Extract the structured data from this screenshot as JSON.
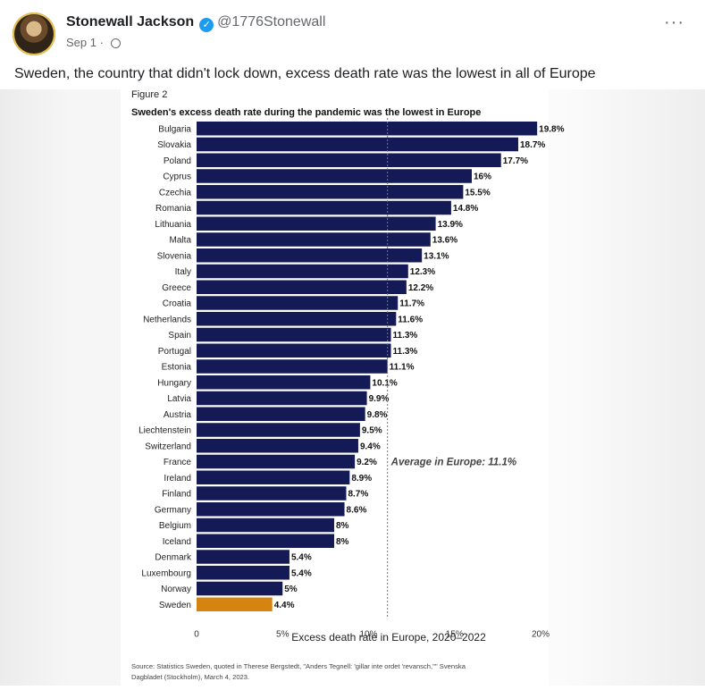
{
  "post": {
    "author": "Stonewall Jackson",
    "handle": "@1776Stonewall",
    "date": "Sep 1",
    "separator": "·",
    "more": "···",
    "verified_mark": "✓",
    "avatar_icon": "avatar-portrait",
    "text": "Sweden, the country that didn't lock down, excess death rate was the lowest in all of Europe"
  },
  "figure": {
    "label": "Figure 2",
    "source_line1": "Source: Statistics Sweden, quoted in Therese Bergstedt, \"Anders Tegnell: 'gillar inte ordet 'revansch,''\" Svenska",
    "source_line2": "Dagbladet (Stockholm), March 4, 2023."
  },
  "chart_data": {
    "type": "bar",
    "orientation": "horizontal",
    "title": "Sweden's excess death rate during the pandemic was the lowest in Europe",
    "xlabel": "Excess death rate in Europe, 2020–2022",
    "xlim": [
      0,
      20
    ],
    "xticks": [
      {
        "value": 0,
        "label": "0"
      },
      {
        "value": 5,
        "label": "5%"
      },
      {
        "value": 10,
        "label": "10%"
      },
      {
        "value": 15,
        "label": "15%"
      },
      {
        "value": 20,
        "label": "20%"
      }
    ],
    "categories": [
      "Bulgaria",
      "Slovakia",
      "Poland",
      "Cyprus",
      "Czechia",
      "Romania",
      "Lithuania",
      "Malta",
      "Slovenia",
      "Italy",
      "Greece",
      "Croatia",
      "Netherlands",
      "Spain",
      "Portugal",
      "Estonia",
      "Hungary",
      "Latvia",
      "Austria",
      "Liechtenstein",
      "Switzerland",
      "France",
      "Ireland",
      "Finland",
      "Germany",
      "Belgium",
      "Iceland",
      "Denmark",
      "Luxembourg",
      "Norway",
      "Sweden"
    ],
    "values": [
      19.8,
      18.7,
      17.7,
      16,
      15.5,
      14.8,
      13.9,
      13.6,
      13.1,
      12.3,
      12.2,
      11.7,
      11.6,
      11.3,
      11.3,
      11.1,
      10.1,
      9.9,
      9.8,
      9.5,
      9.4,
      9.2,
      8.9,
      8.7,
      8.6,
      8,
      8,
      5.4,
      5.4,
      5,
      4.4
    ],
    "value_labels": [
      "19.8%",
      "18.7%",
      "17.7%",
      "16%",
      "15.5%",
      "14.8%",
      "13.9%",
      "13.6%",
      "13.1%",
      "12.3%",
      "12.2%",
      "11.7%",
      "11.6%",
      "11.3%",
      "11.3%",
      "11.1%",
      "10.1%",
      "9.9%",
      "9.8%",
      "9.5%",
      "9.4%",
      "9.2%",
      "8.9%",
      "8.7%",
      "8.6%",
      "8%",
      "8%",
      "5.4%",
      "5.4%",
      "5%",
      "4.4%"
    ],
    "bar_color": "#141a55",
    "highlight": {
      "category": "Sweden",
      "color": "#d4840f"
    },
    "average": {
      "value": 11.1,
      "label": "Average in Europe: 11.1%"
    }
  }
}
